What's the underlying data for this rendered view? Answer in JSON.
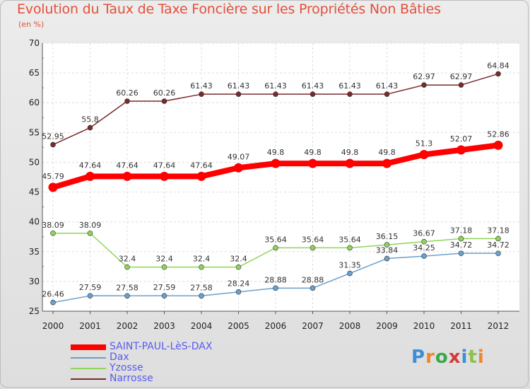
{
  "header": {
    "title": "Evolution du Taux de Taxe Foncière sur les Propriétés Non Bâties",
    "subtitle": "(en %)"
  },
  "logo": {
    "text": "Proxiti",
    "colors": [
      "#3a8fd8",
      "#f0862a",
      "#3aa84a",
      "#d63a3a",
      "#3a8fd8",
      "#8bc34a",
      "#f0862a"
    ]
  },
  "chart_data": {
    "type": "line",
    "x": [
      2000,
      2001,
      2002,
      2003,
      2004,
      2005,
      2006,
      2007,
      2008,
      2009,
      2010,
      2011,
      2012
    ],
    "ylim": [
      25,
      70
    ],
    "yticks": [
      25,
      30,
      35,
      40,
      45,
      50,
      55,
      60,
      65,
      70
    ],
    "grid": true,
    "legend_position": "bottom-left",
    "series": [
      {
        "name": "SAINT-PAUL-LèS-DAX",
        "color": "#ff0000",
        "values": [
          45.79,
          47.64,
          47.64,
          47.64,
          47.64,
          49.07,
          49.8,
          49.8,
          49.8,
          49.8,
          51.3,
          52.07,
          52.86
        ],
        "labels": [
          "45.79",
          "47.64",
          "47.64",
          "47.64",
          "47.64",
          "49.07",
          "49.8",
          "49.8",
          "49.8",
          "49.8",
          "51.3",
          "52.07",
          "52.86"
        ]
      },
      {
        "name": "Dax",
        "color": "#6aa0cc",
        "values": [
          26.46,
          27.59,
          27.58,
          27.59,
          27.58,
          28.24,
          28.88,
          28.88,
          31.35,
          33.84,
          34.25,
          34.72,
          34.72
        ],
        "labels": [
          "26.46",
          "27.59",
          "27.58",
          "27.59",
          "27.58",
          "28.24",
          "28.88",
          "28.88",
          "31.35",
          "33.84",
          "34.25",
          "34.72",
          "34.72"
        ]
      },
      {
        "name": "Yzosse",
        "color": "#8ed45a",
        "values": [
          38.09,
          38.09,
          32.4,
          32.4,
          32.4,
          32.4,
          35.64,
          35.64,
          35.64,
          36.15,
          36.67,
          37.18,
          37.18
        ],
        "labels": [
          "38.09",
          "38.09",
          "32.4",
          "32.4",
          "32.4",
          "32.4",
          "35.64",
          "35.64",
          "35.64",
          "36.15",
          "36.67",
          "37.18",
          "37.18"
        ]
      },
      {
        "name": "Narrosse",
        "color": "#7a2a2a",
        "values": [
          52.95,
          55.8,
          60.26,
          60.26,
          61.43,
          61.43,
          61.43,
          61.43,
          61.43,
          61.43,
          62.97,
          62.97,
          64.84
        ],
        "labels": [
          "52.95",
          "55.8",
          "60.26",
          "60.26",
          "61.43",
          "61.43",
          "61.43",
          "61.43",
          "61.43",
          "61.43",
          "62.97",
          "62.97",
          "64.84"
        ]
      }
    ]
  }
}
